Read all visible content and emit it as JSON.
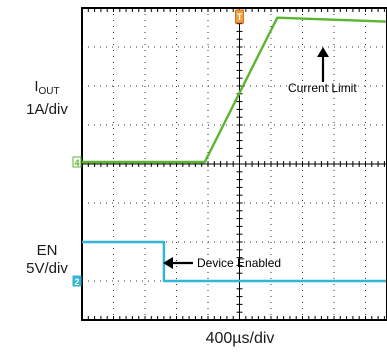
{
  "chart_data": {
    "type": "line",
    "title": "",
    "x_scale": "400µs/div",
    "x_divisions": 10,
    "y_divisions": 8,
    "grid": true,
    "series": [
      {
        "name": "IOUT",
        "scale": "1A/div",
        "unit": "A",
        "color": "#5cb531",
        "marker": "4",
        "x_div": [
          0,
          3.9,
          6.2,
          10
        ],
        "y_div": [
          0,
          0,
          3.7,
          3.6
        ]
      },
      {
        "name": "EN",
        "scale": "5V/div",
        "unit": "V",
        "color": "#33b5d5",
        "marker": "2",
        "x_div": [
          0,
          2.6,
          2.6,
          10
        ],
        "y_div": [
          1,
          1,
          0,
          0
        ]
      }
    ],
    "trigger_marker": "T",
    "annotations": [
      {
        "text": "Current Limit",
        "target": "IOUT"
      },
      {
        "text": "Device Enabled",
        "target": "EN"
      }
    ]
  },
  "labels": {
    "iout_main": "I",
    "iout_sub": "OUT",
    "iout_scale": "1A/div",
    "en_name": "EN",
    "en_scale": "5V/div",
    "time_scale": "400µs/div",
    "current_limit": "Current Limit",
    "device_enabled": "Device Enabled"
  }
}
